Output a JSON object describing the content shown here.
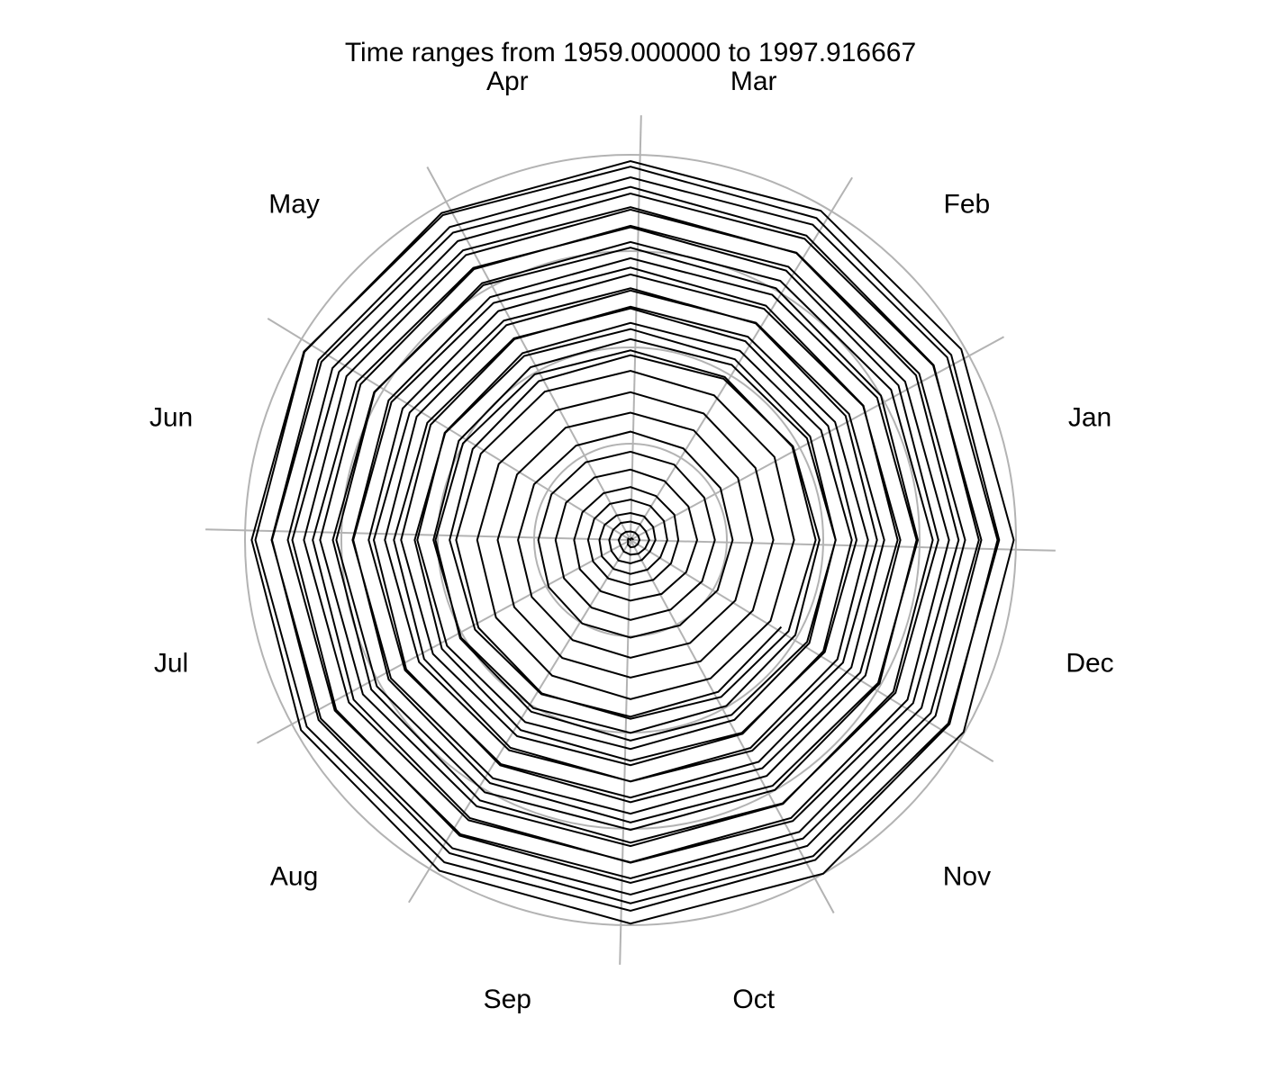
{
  "chart_data": {
    "type": "line",
    "subtype": "polar-spiral",
    "title": "Time ranges from 1959.000000 to 1997.916667",
    "xlabel": "",
    "ylabel": "",
    "x_start": "1959-01",
    "x_end": "1997-12",
    "grid": true,
    "legend": "none",
    "angle_labels": [
      "Jan",
      "Feb",
      "Mar",
      "Apr",
      "May",
      "Jun",
      "Jul",
      "Aug",
      "Sep",
      "Oct",
      "Nov",
      "Dec"
    ],
    "r_range": [
      0,
      1
    ],
    "grid_circles": [
      0.25,
      0.5,
      0.75,
      1.0
    ],
    "series": [
      {
        "values": [
          0.007,
          0.0062,
          0.0049,
          0.0021,
          0.0007,
          0.0067,
          0.0067,
          0.0073,
          0.0137,
          0.0189,
          0.0206,
          0.0218,
          0.0234,
          0.0229,
          0.0224,
          0.0223,
          0.0243,
          0.0272,
          0.0309,
          0.0297,
          0.0347,
          0.038,
          0.0412,
          0.0438,
          0.0486,
          0.0456,
          0.0476,
          0.048,
          0.0509,
          0.0522,
          0.0552,
          0.0569,
          0.0618,
          0.0608,
          0.0597,
          0.0585,
          0.0648,
          0.0678,
          0.0707,
          0.07,
          0.0735,
          0.0779,
          0.0805,
          0.0856,
          0.0868,
          0.088,
          0.0888,
          0.0896,
          0.0954,
          0.0997,
          0.1022,
          0.1048,
          0.1081,
          0.1087,
          0.11,
          0.1119,
          0.1153,
          0.1163,
          0.1192,
          0.1213,
          0.124,
          0.1313,
          0.1318,
          0.1374,
          0.1402,
          0.1441,
          0.1463,
          0.1517,
          0.1537,
          0.1575,
          0.1616,
          0.167,
          0.1728,
          0.1736,
          0.1767,
          0.1828,
          0.1874,
          0.1933,
          0.1943,
          0.1991,
          0.2025,
          0.2075,
          0.2088,
          0.2146,
          0.219,
          0.2206,
          0.226,
          0.2292,
          0.2327,
          0.2369,
          0.2392,
          0.2449,
          0.2504,
          0.2535,
          0.2559,
          0.2609,
          0.265,
          0.2694,
          0.2745,
          0.2814,
          0.2828,
          0.289,
          0.2918,
          0.2956,
          0.2999,
          0.3055,
          0.3088,
          0.3141,
          0.3166,
          0.3218,
          0.3286,
          0.3307,
          0.3366,
          0.3399,
          0.3447,
          0.3483,
          0.3536,
          0.3571,
          0.3635,
          0.3665,
          0.3706,
          0.3742,
          0.3794,
          0.3836,
          0.3881,
          0.3946,
          0.3977,
          0.4027,
          0.4066,
          0.4131,
          0.4151,
          0.4196,
          0.4242,
          0.4312,
          0.4335,
          0.4392,
          0.4447,
          0.4483,
          0.4523,
          0.4554,
          0.4601,
          0.4643,
          0.4705,
          0.4736,
          0.4803,
          0.4846,
          0.4886,
          0.4923,
          0.4968,
          0.5018,
          0.5058,
          0.5102,
          0.5148,
          0.5205,
          0.5241,
          0.5291,
          0.5322,
          0.5379,
          0.5417,
          0.5477,
          0.5517,
          0.5552,
          0.5598,
          0.5649,
          0.5698,
          0.5734,
          0.578,
          0.582,
          0.5865,
          0.5919,
          0.5957,
          0.6011,
          0.6046,
          0.6086,
          0.6138,
          0.6181,
          0.6229,
          0.6271,
          0.6317,
          0.6364,
          0.6395,
          0.6442,
          0.6495,
          0.6535,
          0.6575,
          0.6615,
          0.666,
          0.6717,
          0.6755,
          0.6807,
          0.6841,
          0.6883,
          0.6929,
          0.6978,
          0.7025,
          0.7073,
          0.7106,
          0.716,
          0.7192,
          0.7245,
          0.7288,
          0.7332,
          0.7367,
          0.7418,
          0.7454,
          0.7499,
          0.7547,
          0.7588,
          0.7639,
          0.7678,
          0.7721,
          0.7764,
          0.7807,
          0.7859,
          0.7893,
          0.7938,
          0.7985,
          0.8026,
          0.8076,
          0.8118,
          0.8156,
          0.8202,
          0.8244,
          0.8292,
          0.8337,
          0.8378,
          0.8422,
          0.8467,
          0.8511,
          0.8552,
          0.8601,
          0.8643,
          0.8685,
          0.8731,
          0.8773,
          0.8818,
          0.8863,
          0.8903,
          0.8949,
          0.8992,
          0.9037,
          0.9081,
          0.9124,
          0.9168,
          0.9212,
          0.9256,
          0.93,
          0.9344,
          0.9388,
          0.9432,
          0.9476,
          0.952,
          0.9563,
          0.9607,
          0.9651,
          0.9695,
          0.9739,
          0.9782,
          0.9826,
          0.987,
          0.9914,
          0.9958,
          1.0,
          0.9976,
          0.9941,
          0.9906,
          0.9871,
          0.9836,
          0.9801,
          0.9766,
          0.9731,
          0.9696,
          0.9661,
          0.9626,
          0.9591,
          0.9556,
          0.9521,
          0.9486,
          0.9451,
          0.9416,
          0.9381,
          0.9346,
          0.9311,
          0.9276,
          0.9241,
          0.9206,
          0.9171,
          0.9136,
          0.9101,
          0.9066,
          0.9031,
          0.8996,
          0.8961,
          0.8926,
          0.8891,
          0.8856,
          0.8821,
          0.8786,
          0.8751,
          0.8716,
          0.8681,
          0.8646,
          0.8611,
          0.8576,
          0.8541,
          0.8506,
          0.8471,
          0.8436,
          0.8401,
          0.8366,
          0.8331,
          0.8296,
          0.8261,
          0.8226,
          0.8191,
          0.8156,
          0.8121,
          0.8086,
          0.8051,
          0.8016,
          0.7981,
          0.7946,
          0.7911,
          0.7876,
          0.7841,
          0.7806,
          0.7771,
          0.7736,
          0.7701,
          0.7666,
          0.7631,
          0.7596,
          0.7561,
          0.7526,
          0.7491,
          0.7456,
          0.7421,
          0.7386,
          0.7351,
          0.7316,
          0.7281,
          0.7246,
          0.7211,
          0.7176,
          0.7141,
          0.7106,
          0.7071,
          0.7036,
          0.7001,
          0.6966,
          0.6931,
          0.6896,
          0.6861,
          0.6826,
          0.6791,
          0.6756,
          0.6721,
          0.6686,
          0.6651,
          0.6616,
          0.6581,
          0.6546,
          0.6511,
          0.6476,
          0.6441,
          0.6406,
          0.6371,
          0.6336,
          0.6301,
          0.6266,
          0.6231,
          0.6196,
          0.6161,
          0.6126,
          0.6091,
          0.6056,
          0.6021,
          0.5986,
          0.5951,
          0.5916,
          0.5881,
          0.5846,
          0.5811,
          0.5776,
          0.5741,
          0.5706,
          0.5671,
          0.5636,
          0.5601,
          0.5566,
          0.5531,
          0.5496,
          0.5461,
          0.5426,
          0.5391,
          0.5356,
          0.5321,
          0.5286,
          0.5251,
          0.5216,
          0.5181,
          0.5146,
          0.5111,
          0.5076,
          0.5041,
          0.5006,
          0.4971,
          0.4936,
          0.4901,
          0.4866,
          0.4831,
          0.4796,
          0.4761,
          0.4726,
          0.4691,
          0.4656,
          0.4621,
          0.4586,
          0.4551,
          0.4516
        ]
      }
    ]
  }
}
